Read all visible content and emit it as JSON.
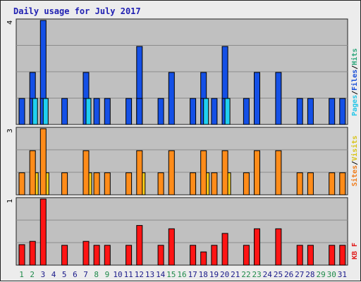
{
  "chart_data": {
    "type": "bar",
    "title": "Daily usage for July 2017",
    "days": [
      "1",
      "2",
      "3",
      "4",
      "5",
      "6",
      "7",
      "8",
      "9",
      "10",
      "11",
      "12",
      "13",
      "14",
      "15",
      "16",
      "17",
      "18",
      "19",
      "20",
      "21",
      "22",
      "23",
      "24",
      "25",
      "26",
      "27",
      "28",
      "29",
      "30",
      "31"
    ],
    "weekend_days": [
      1,
      2,
      8,
      9,
      15,
      16,
      22,
      23,
      29,
      30
    ],
    "panels": [
      {
        "name": "top",
        "ymax_label": "4",
        "ylim": [
          0,
          4
        ],
        "legend": [
          {
            "text": "Hits",
            "color": "#2aa67a"
          },
          {
            "text": "/",
            "color": "#000000"
          },
          {
            "text": "Files",
            "color": "#1a4fd8"
          },
          {
            "text": "/",
            "color": "#000000"
          },
          {
            "text": "Pages",
            "color": "#22c6e8"
          }
        ],
        "series": [
          {
            "name": "Hits",
            "color": "#1450e6",
            "values": [
              1,
              2,
              4,
              0,
              1,
              0,
              2,
              1,
              1,
              0,
              1,
              3,
              0,
              1,
              2,
              0,
              1,
              2,
              1,
              3,
              0,
              1,
              2,
              0,
              2,
              0,
              1,
              1,
              0,
              1,
              1
            ]
          },
          {
            "name": "Files",
            "color": "#1450e6",
            "values": [
              1,
              1,
              1,
              0,
              0,
              0,
              1,
              0,
              0,
              0,
              0,
              1,
              0,
              0,
              0,
              0,
              0,
              1,
              0,
              1,
              0,
              0,
              0,
              0,
              0,
              0,
              0,
              0,
              0,
              0,
              0
            ]
          },
          {
            "name": "Pages",
            "color": "#20d0f0",
            "values": [
              0,
              1,
              1,
              0,
              0,
              0,
              1,
              0,
              0,
              0,
              0,
              0,
              0,
              0,
              0,
              0,
              0,
              1,
              0,
              1,
              0,
              0,
              0,
              0,
              0,
              0,
              0,
              0,
              0,
              0,
              0
            ]
          }
        ]
      },
      {
        "name": "middle",
        "ymax_label": "3",
        "ylim": [
          0,
          3
        ],
        "legend": [
          {
            "text": "Visits",
            "color": "#d8c41a"
          },
          {
            "text": "/",
            "color": "#000000"
          },
          {
            "text": "Sites",
            "color": "#f07c1a"
          }
        ],
        "series": [
          {
            "name": "Visits",
            "color": "#ffd21a",
            "values": [
              0,
              1,
              1,
              0,
              0,
              0,
              1,
              0,
              0,
              0,
              0,
              1,
              0,
              0,
              0,
              0,
              0,
              1,
              0,
              1,
              0,
              0,
              0,
              0,
              0,
              0,
              0,
              0,
              0,
              0,
              0
            ]
          },
          {
            "name": "Sites",
            "color": "#ff8c1a",
            "values": [
              1,
              2,
              3,
              0,
              1,
              0,
              2,
              1,
              1,
              0,
              1,
              2,
              0,
              1,
              2,
              0,
              1,
              2,
              1,
              2,
              0,
              1,
              2,
              0,
              2,
              0,
              1,
              1,
              0,
              1,
              1
            ]
          }
        ]
      },
      {
        "name": "bottom",
        "ymax_label": "1",
        "ylim": [
          0,
          1
        ],
        "legend": [
          {
            "text": "KB F",
            "color": "#e01a1a"
          }
        ],
        "series": [
          {
            "name": "KB F",
            "color": "#ff1414",
            "values": [
              0.31,
              0.36,
              1.0,
              0,
              0.3,
              0,
              0.36,
              0.3,
              0.3,
              0,
              0.3,
              0.6,
              0,
              0.3,
              0.55,
              0,
              0.3,
              0.2,
              0.3,
              0.48,
              0,
              0.3,
              0.55,
              0,
              0.55,
              0,
              0.3,
              0.3,
              0,
              0.3,
              0.3
            ]
          }
        ]
      }
    ],
    "colors": {
      "plot_bg": "#c0c0c0",
      "frame_bg": "#ececec",
      "grid": "#8c8c8c",
      "weekday_label": "#1a1a8a",
      "weekend_label": "#1f8a4a"
    }
  }
}
